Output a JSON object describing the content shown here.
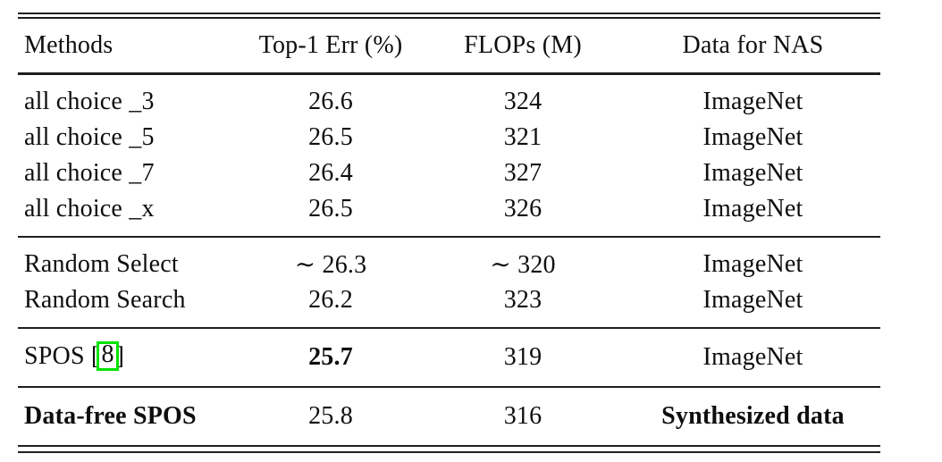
{
  "table": {
    "columns": {
      "methods": "Methods",
      "top1_err": "Top-1 Err (%)",
      "flops": "FLOPs (M)",
      "data_for_nas": "Data for NAS"
    },
    "groups": {
      "all_choice": {
        "rows": [
          {
            "method": "all choice _3",
            "err": "26.6",
            "flops": "324",
            "data": "ImageNet"
          },
          {
            "method": "all choice _5",
            "err": "26.5",
            "flops": "321",
            "data": "ImageNet"
          },
          {
            "method": "all choice _7",
            "err": "26.4",
            "flops": "327",
            "data": "ImageNet"
          },
          {
            "method": "all choice _x",
            "err": "26.5",
            "flops": "326",
            "data": "ImageNet"
          }
        ]
      },
      "random": {
        "rows": [
          {
            "method": "Random Select",
            "err": "∼ 26.3",
            "flops": "∼ 320",
            "data": "ImageNet"
          },
          {
            "method": "Random Search",
            "err": "26.2",
            "flops": "323",
            "data": "ImageNet"
          }
        ]
      },
      "spos": {
        "rows": [
          {
            "method_prefix": "SPOS [",
            "citation_ref": "8",
            "method_suffix": "]",
            "err": "25.7",
            "flops": "319",
            "data": "ImageNet"
          }
        ]
      },
      "data_free": {
        "rows": [
          {
            "method": "Data-free SPOS",
            "err": "25.8",
            "flops": "316",
            "data": "Synthesized data"
          }
        ]
      }
    },
    "citation_box_color": "#00e300"
  }
}
